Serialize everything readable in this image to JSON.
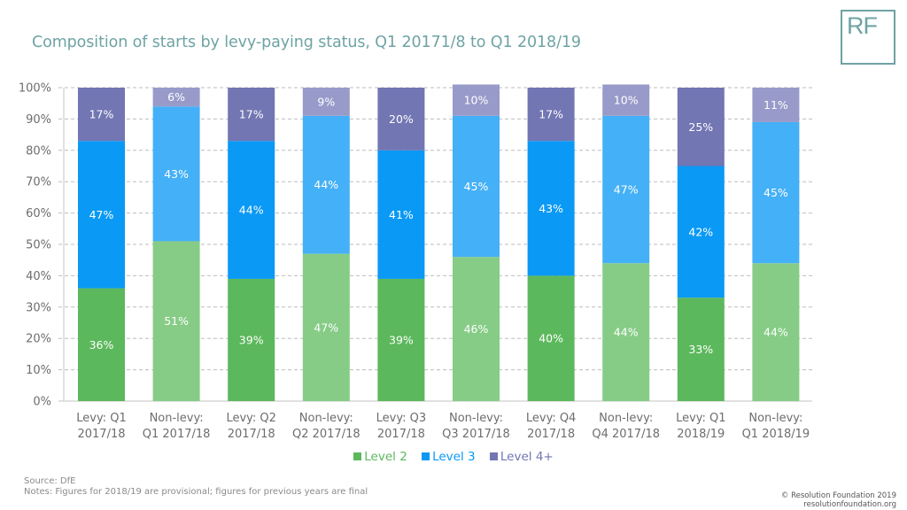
{
  "header": {
    "title": "Composition of starts by levy-paying status, Q1 20171/8 to Q1 2018/19",
    "logo_text": "RF"
  },
  "colors": {
    "title": "#6fa3a4",
    "level2_levy": "#5cb85c",
    "level2_nonlevy": "#86cc86",
    "level3_levy": "#0a99f5",
    "level3_nonlevy": "#44b0f7",
    "level4_levy": "#7276b3",
    "level4_nonlevy": "#989bc9",
    "grid": "#bdbdbd",
    "axis_text": "#6d6d6d"
  },
  "chart_data": {
    "type": "bar",
    "stacked": true,
    "title": "Composition of starts by levy-paying status, Q1 20171/8 to Q1 2018/19",
    "xlabel": "",
    "ylabel": "",
    "ylim": [
      0,
      100
    ],
    "yticks": [
      "0%",
      "10%",
      "20%",
      "30%",
      "40%",
      "50%",
      "60%",
      "70%",
      "80%",
      "90%",
      "100%"
    ],
    "grid": true,
    "legend_position": "bottom",
    "categories": [
      [
        "Levy: Q1",
        "2017/18"
      ],
      [
        "Non-levy:",
        "Q1 2017/18"
      ],
      [
        "Levy: Q2",
        "2017/18"
      ],
      [
        "Non-levy:",
        "Q2 2017/18"
      ],
      [
        "Levy: Q3",
        "2017/18"
      ],
      [
        "Non-levy:",
        "Q3 2017/18"
      ],
      [
        "Levy: Q4",
        "2017/18"
      ],
      [
        "Non-levy:",
        "Q4 2017/18"
      ],
      [
        "Levy: Q1",
        "2018/19"
      ],
      [
        "Non-levy:",
        "Q1 2018/19"
      ]
    ],
    "levy_status": [
      "levy",
      "nonlevy",
      "levy",
      "nonlevy",
      "levy",
      "nonlevy",
      "levy",
      "nonlevy",
      "levy",
      "nonlevy"
    ],
    "series": [
      {
        "name": "Level 2",
        "key": "level2",
        "values": [
          36,
          51,
          39,
          47,
          39,
          46,
          40,
          44,
          33,
          44
        ]
      },
      {
        "name": "Level 3",
        "key": "level3",
        "values": [
          47,
          43,
          44,
          44,
          41,
          45,
          43,
          47,
          42,
          45
        ]
      },
      {
        "name": "Level 4+",
        "key": "level4",
        "values": [
          17,
          6,
          17,
          9,
          20,
          10,
          17,
          10,
          25,
          11
        ]
      }
    ]
  },
  "legend": [
    {
      "label": "Level 2",
      "color": "#5cb85c"
    },
    {
      "label": "Level 3",
      "color": "#0a99f5"
    },
    {
      "label": "Level 4+",
      "color": "#7276b3"
    }
  ],
  "footer": {
    "source": "Source: DfE",
    "notes": "Notes: Figures for 2018/19 are provisional; figures for previous years are final"
  },
  "copyright": {
    "line1": "© Resolution Foundation 2019",
    "line2": "resolutionfoundation.org"
  }
}
